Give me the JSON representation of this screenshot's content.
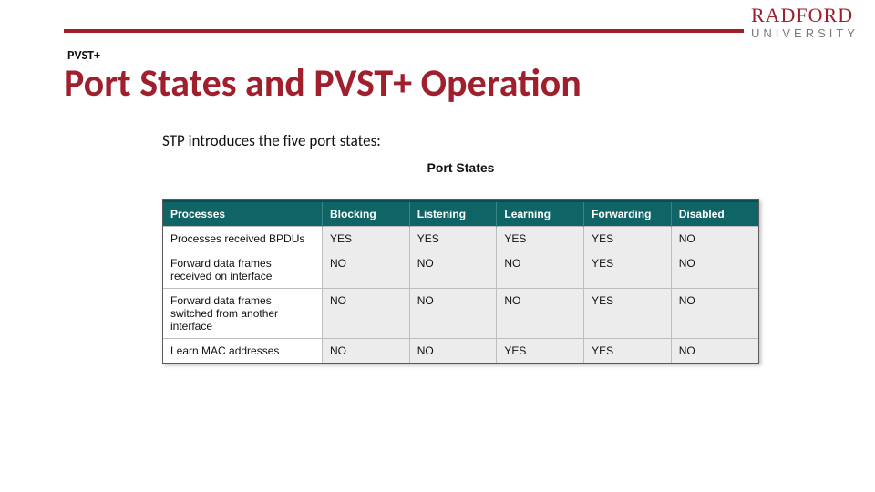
{
  "logo": {
    "top": "RADFORD",
    "bottom": "UNIVERSITY"
  },
  "colors": {
    "brand_red": "#a01f2d",
    "table_header_bg": "#0f6565",
    "table_cell_bg": "#ececec",
    "table_firstcol_bg": "#ffffff",
    "border_gray": "#bdbdbd"
  },
  "kicker": "PVST+",
  "title": "Port States and PVST+ Operation",
  "subtitle": "STP introduces the five port states:",
  "table": {
    "title": "Port States",
    "columns": [
      "Processes",
      "Blocking",
      "Listening",
      "Learning",
      "Forwarding",
      "Disabled"
    ],
    "rows": [
      {
        "label": "Processes received BPDUs",
        "cells": [
          "YES",
          "YES",
          "YES",
          "YES",
          "NO"
        ]
      },
      {
        "label": "Forward data frames received on interface",
        "cells": [
          "NO",
          "NO",
          "NO",
          "YES",
          "NO"
        ]
      },
      {
        "label": "Forward data frames switched from another interface",
        "cells": [
          "NO",
          "NO",
          "NO",
          "YES",
          "NO"
        ]
      },
      {
        "label": "Learn MAC addresses",
        "cells": [
          "NO",
          "NO",
          "YES",
          "YES",
          "NO"
        ]
      }
    ]
  }
}
